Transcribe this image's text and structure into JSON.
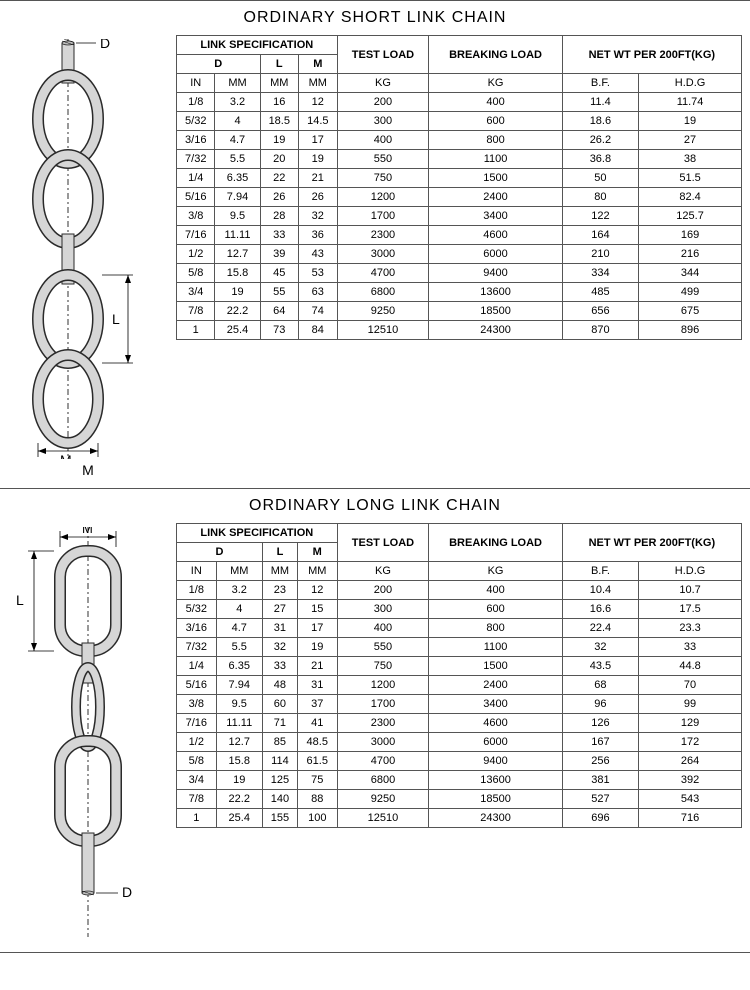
{
  "colors": {
    "border": "#555555",
    "text": "#000000",
    "background": "#ffffff",
    "chain_stroke": "#2a2a2a",
    "chain_fill": "#d6d6d6",
    "dim_line": "#000000"
  },
  "short_link": {
    "title": "ORDINARY SHORT LINK CHAIN",
    "diagram": {
      "labels": {
        "D": "D",
        "L": "L",
        "M": "M"
      }
    },
    "headers": {
      "group_link": "LINK SPECIFICATION",
      "group_test": "TEST LOAD",
      "group_break": "BREAKING LOAD",
      "group_netwt": "NET WT PER 200FT(KG)",
      "sub_D": "D",
      "sub_L": "L",
      "sub_M": "M",
      "unit_in": "IN",
      "unit_mm1": "MM",
      "unit_mm2": "MM",
      "unit_mm3": "MM",
      "unit_kg1": "KG",
      "unit_kg2": "KG",
      "unit_bf": "B.F.",
      "unit_hdg": "H.D.G"
    },
    "rows": [
      [
        "1/8",
        "3.2",
        "16",
        "12",
        "200",
        "400",
        "11.4",
        "11.74"
      ],
      [
        "5/32",
        "4",
        "18.5",
        "14.5",
        "300",
        "600",
        "18.6",
        "19"
      ],
      [
        "3/16",
        "4.7",
        "19",
        "17",
        "400",
        "800",
        "26.2",
        "27"
      ],
      [
        "7/32",
        "5.5",
        "20",
        "19",
        "550",
        "1100",
        "36.8",
        "38"
      ],
      [
        "1/4",
        "6.35",
        "22",
        "21",
        "750",
        "1500",
        "50",
        "51.5"
      ],
      [
        "5/16",
        "7.94",
        "26",
        "26",
        "1200",
        "2400",
        "80",
        "82.4"
      ],
      [
        "3/8",
        "9.5",
        "28",
        "32",
        "1700",
        "3400",
        "122",
        "125.7"
      ],
      [
        "7/16",
        "11.11",
        "33",
        "36",
        "2300",
        "4600",
        "164",
        "169"
      ],
      [
        "1/2",
        "12.7",
        "39",
        "43",
        "3000",
        "6000",
        "210",
        "216"
      ],
      [
        "5/8",
        "15.8",
        "45",
        "53",
        "4700",
        "9400",
        "334",
        "344"
      ],
      [
        "3/4",
        "19",
        "55",
        "63",
        "6800",
        "13600",
        "485",
        "499"
      ],
      [
        "7/8",
        "22.2",
        "64",
        "74",
        "9250",
        "18500",
        "656",
        "675"
      ],
      [
        "1",
        "25.4",
        "73",
        "84",
        "12510",
        "24300",
        "870",
        "896"
      ]
    ]
  },
  "long_link": {
    "title": "ORDINARY LONG LINK CHAIN",
    "diagram": {
      "labels": {
        "D": "D",
        "L": "L",
        "M": "M"
      }
    },
    "headers": {
      "group_link": "LINK SPECIFICATION",
      "group_test": "TEST LOAD",
      "group_break": "BREAKING LOAD",
      "group_netwt": "NET WT PER 200FT(KG)",
      "sub_D": "D",
      "sub_L": "L",
      "sub_M": "M",
      "unit_in": "IN",
      "unit_mm1": "MM",
      "unit_mm2": "MM",
      "unit_mm3": "MM",
      "unit_kg1": "KG",
      "unit_kg2": "KG",
      "unit_bf": "B.F.",
      "unit_hdg": "H.D.G"
    },
    "rows": [
      [
        "1/8",
        "3.2",
        "23",
        "12",
        "200",
        "400",
        "10.4",
        "10.7"
      ],
      [
        "5/32",
        "4",
        "27",
        "15",
        "300",
        "600",
        "16.6",
        "17.5"
      ],
      [
        "3/16",
        "4.7",
        "31",
        "17",
        "400",
        "800",
        "22.4",
        "23.3"
      ],
      [
        "7/32",
        "5.5",
        "32",
        "19",
        "550",
        "1100",
        "32",
        "33"
      ],
      [
        "1/4",
        "6.35",
        "33",
        "21",
        "750",
        "1500",
        "43.5",
        "44.8"
      ],
      [
        "5/16",
        "7.94",
        "48",
        "31",
        "1200",
        "2400",
        "68",
        "70"
      ],
      [
        "3/8",
        "9.5",
        "60",
        "37",
        "1700",
        "3400",
        "96",
        "99"
      ],
      [
        "7/16",
        "11.11",
        "71",
        "41",
        "2300",
        "4600",
        "126",
        "129"
      ],
      [
        "1/2",
        "12.7",
        "85",
        "48.5",
        "3000",
        "6000",
        "167",
        "172"
      ],
      [
        "5/8",
        "15.8",
        "114",
        "61.5",
        "4700",
        "9400",
        "256",
        "264"
      ],
      [
        "3/4",
        "19",
        "125",
        "75",
        "6800",
        "13600",
        "381",
        "392"
      ],
      [
        "7/8",
        "22.2",
        "140",
        "88",
        "9250",
        "18500",
        "527",
        "543"
      ],
      [
        "1",
        "25.4",
        "155",
        "100",
        "12510",
        "24300",
        "696",
        "716"
      ]
    ]
  }
}
